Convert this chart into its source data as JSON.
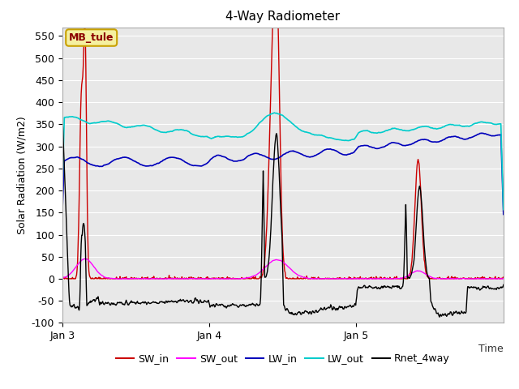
{
  "title": "4-Way Radiometer",
  "xlabel": "Time",
  "ylabel": "Solar Radiation (W/m2)",
  "ylim": [
    -100,
    570
  ],
  "yticks": [
    -100,
    -50,
    0,
    50,
    100,
    150,
    200,
    250,
    300,
    350,
    400,
    450,
    500,
    550
  ],
  "legend_labels": [
    "SW_in",
    "SW_out",
    "LW_in",
    "LW_out",
    "Rnet_4way"
  ],
  "legend_colors": [
    "#cc0000",
    "#ff00ff",
    "#0000bb",
    "#00cccc",
    "#000000"
  ],
  "annotation_text": "MB_tule",
  "xtick_labels": [
    "Jan 3",
    "Jan 4",
    "Jan 5"
  ],
  "plot_bg_color": "#e8e8e8",
  "fig_bg_color": "#ffffff",
  "grid_color": "#ffffff",
  "title_fontsize": 11,
  "axis_fontsize": 9,
  "legend_fontsize": 9
}
